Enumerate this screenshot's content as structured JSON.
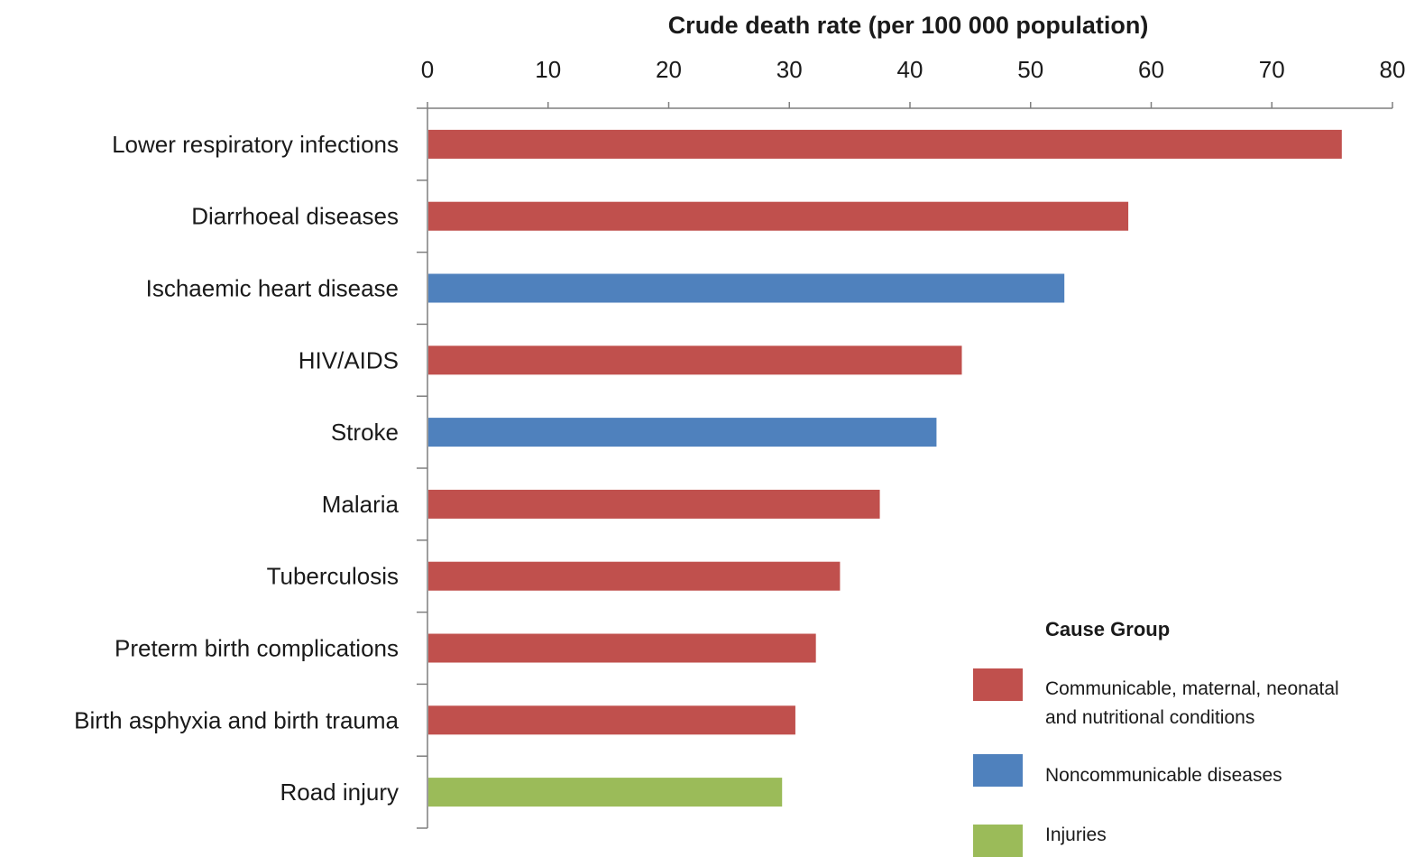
{
  "chart_data": {
    "type": "bar",
    "orientation": "horizontal",
    "title": "",
    "xlabel": "Crude death rate (per 100 000 population)",
    "ylabel": "",
    "xlim": [
      0,
      80
    ],
    "xticks": [
      "0",
      "10",
      "20",
      "30",
      "40",
      "50",
      "60",
      "70",
      "80"
    ],
    "x_axis_position": "top",
    "grid": false,
    "categories": [
      "Lower respiratory infections",
      "Diarrhoeal diseases",
      "Ischaemic heart disease",
      "HIV/AIDS",
      "Stroke",
      "Malaria",
      "Tuberculosis",
      "Preterm birth complications",
      "Birth asphyxia and birth trauma",
      "Road injury"
    ],
    "values": [
      75.8,
      58.1,
      52.8,
      44.3,
      42.2,
      37.5,
      34.2,
      32.2,
      30.5,
      29.4
    ],
    "groups": [
      "communicable",
      "communicable",
      "noncommunicable",
      "communicable",
      "noncommunicable",
      "communicable",
      "communicable",
      "communicable",
      "communicable",
      "injuries"
    ],
    "legend": {
      "title": "Cause Group",
      "placement": "bottom-right",
      "items": [
        {
          "key": "communicable",
          "label_line1": "Communicable, maternal, neonatal",
          "label_line2": "and nutritional conditions",
          "color": "#c0504d"
        },
        {
          "key": "noncommunicable",
          "label_line1": "Noncommunicable diseases",
          "label_line2": "",
          "color": "#4f81bd"
        },
        {
          "key": "injuries",
          "label_line1": "Injuries",
          "label_line2": "",
          "color": "#9bbb59"
        }
      ]
    }
  }
}
